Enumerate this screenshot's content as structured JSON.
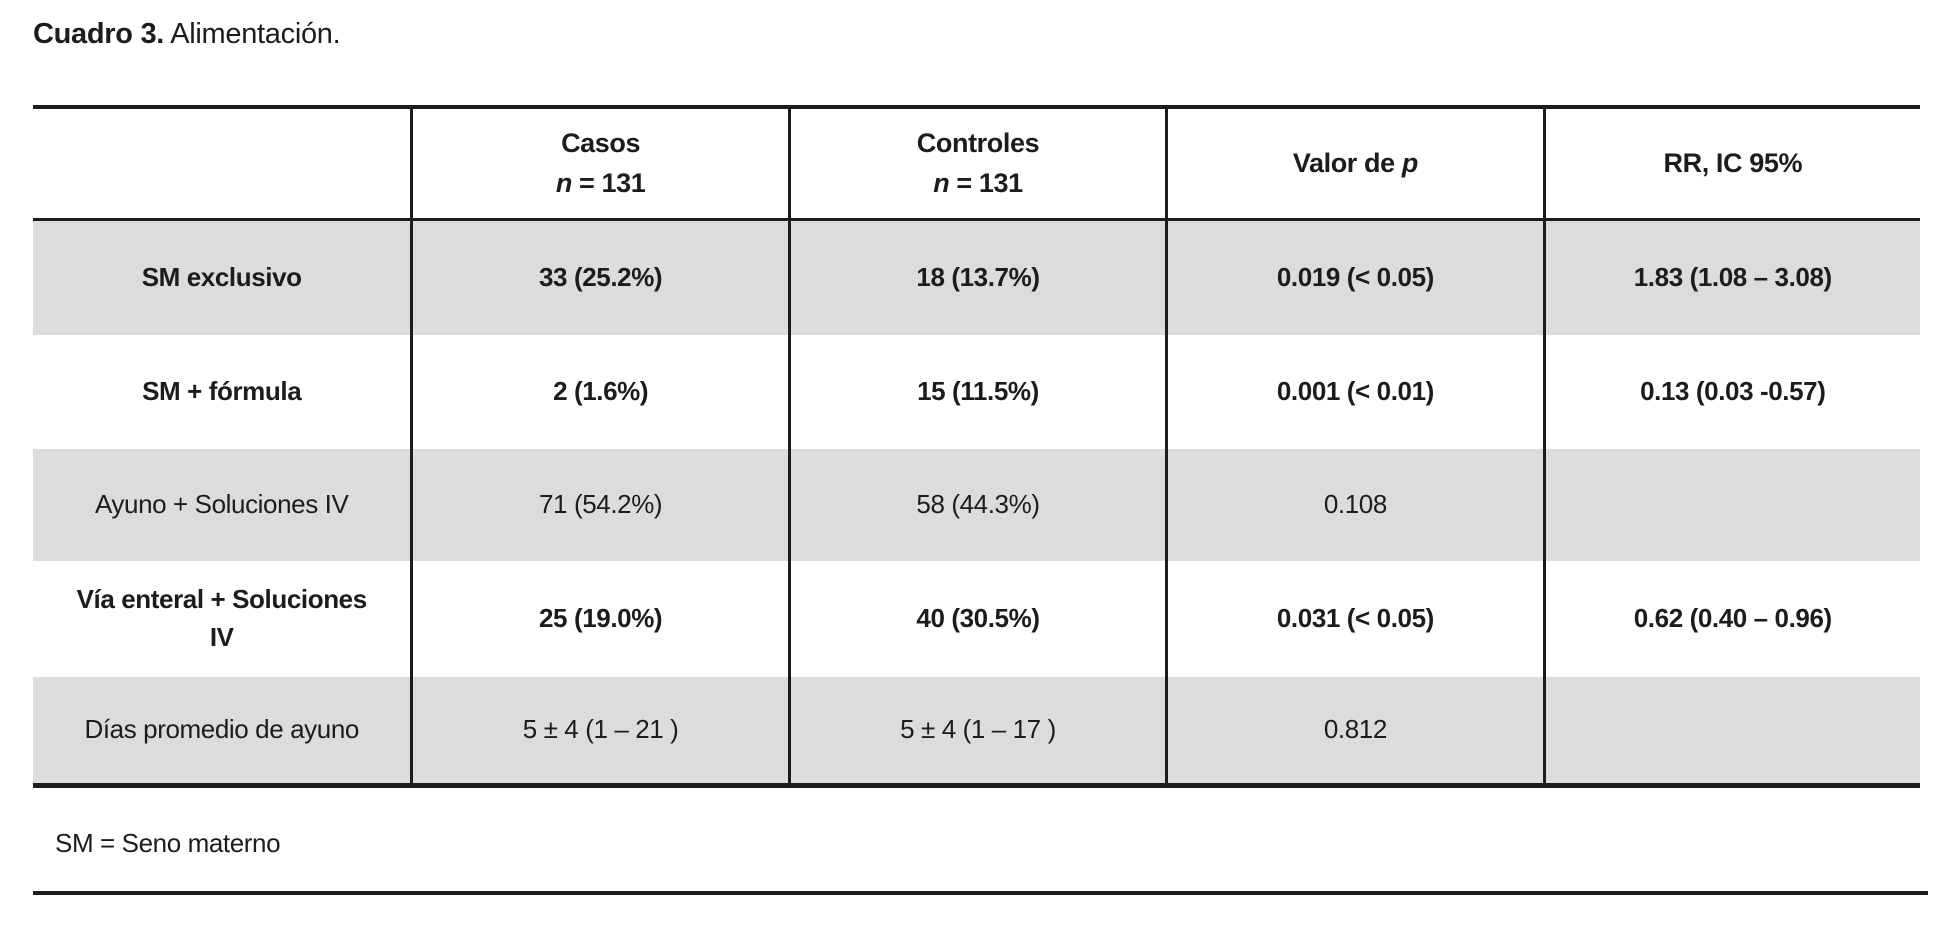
{
  "page": {
    "background": "#ffffff",
    "text_color": "#1c1c1c",
    "shade_color": "#dcdcdc"
  },
  "title": {
    "label": "Cuadro 3.",
    "text": " Alimentación."
  },
  "table": {
    "header": {
      "col_label": "",
      "casos_line1": "Casos",
      "casos_n_symbol": "n",
      "casos_n_value": " = 131",
      "controles_line1": "Controles",
      "controles_n_symbol": "n",
      "controles_n_value": " = 131",
      "p_prefix": "Valor de ",
      "p_symbol": "p",
      "rr": "RR, IC 95%"
    },
    "rows": [
      {
        "label": "SM exclusivo",
        "casos": "33 (25.2%)",
        "controles": "18 (13.7%)",
        "p": "0.019 (< 0.05)",
        "rr": "1.83 (1.08 – 3.08)",
        "bold": true,
        "shaded": true
      },
      {
        "label": "SM + fórmula",
        "casos": "2 (1.6%)",
        "controles": "15 (11.5%)",
        "p": "0.001 (< 0.01)",
        "rr": "0.13 (0.03 -0.57)",
        "bold": true,
        "shaded": false
      },
      {
        "label": "Ayuno + Soluciones IV",
        "casos": "71 (54.2%)",
        "controles": "58 (44.3%)",
        "p": "0.108",
        "rr": "",
        "bold": false,
        "shaded": true
      },
      {
        "label": "Vía enteral + Soluciones IV",
        "casos": "25 (19.0%)",
        "controles": "40 (30.5%)",
        "p": "0.031 (< 0.05)",
        "rr": "0.62 (0.40 – 0.96)",
        "bold": true,
        "shaded": false
      },
      {
        "label": "Días promedio de ayuno",
        "casos": "5 ± 4  (1 – 21 )",
        "controles": "5 ± 4 (1 – 17 )",
        "p": "0.812",
        "rr": "",
        "bold": false,
        "shaded": true
      }
    ]
  },
  "footnote": "SM = Seno materno"
}
